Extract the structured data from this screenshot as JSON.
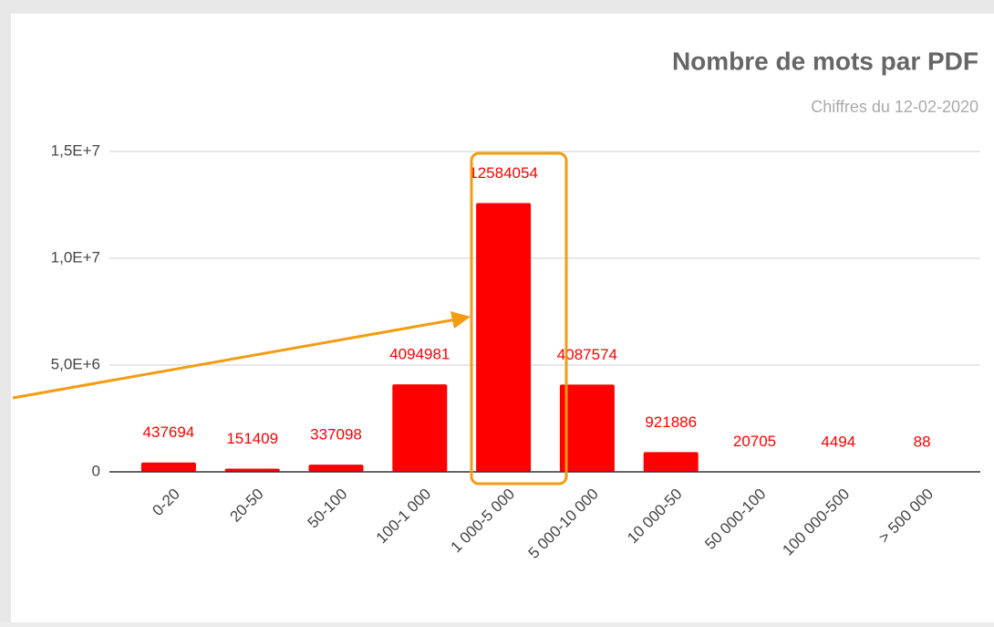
{
  "chart_data": {
    "type": "bar",
    "title": "Nombre de mots par PDF",
    "subtitle": "Chiffres du 12-02-2020",
    "categories": [
      "0-20",
      "20-50",
      "50-100",
      "100-1 000",
      "1 000-5 000",
      "5 000-10 000",
      "10 000-50",
      "50 000-100",
      "100 000-500",
      "> 500 000"
    ],
    "values": [
      437694,
      151409,
      337098,
      4094981,
      12584054,
      4087574,
      921886,
      20705,
      4494,
      88
    ],
    "color": "#ff0000",
    "ylim": [
      0,
      15000000
    ],
    "yticks": [
      0,
      {
        "value": 5000000,
        "label": "5,0E+6"
      },
      {
        "value": 10000000,
        "label": "1,0E+7"
      },
      {
        "value": 15000000,
        "label": "1,5E+7"
      }
    ],
    "grid": true
  }
}
